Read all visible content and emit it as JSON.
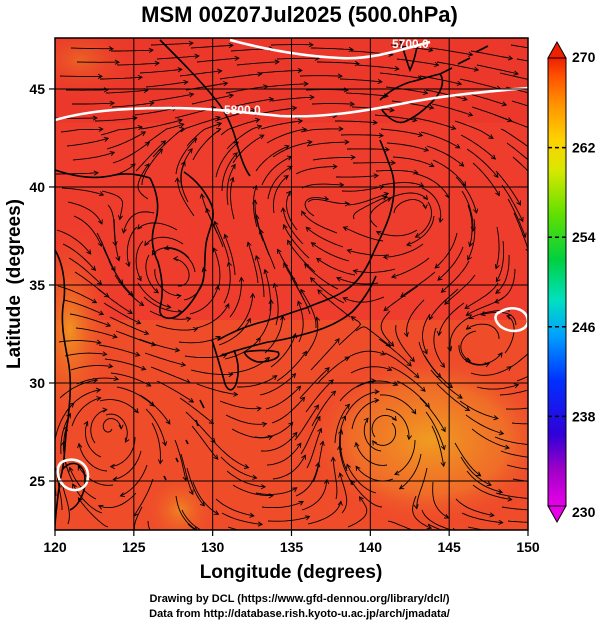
{
  "title": "MSM 00Z07Jul2025 (500.0hPa)",
  "chart_data": {
    "type": "map",
    "map_type": "temperature shading with wind streamlines and geopotential height contours",
    "xlabel": "Longitude (degrees)",
    "ylabel": "Latitude  (degrees)",
    "xlim": [
      120,
      150
    ],
    "ylim": [
      22.5,
      47.6
    ],
    "xticks": [
      120,
      125,
      130,
      135,
      140,
      145,
      150
    ],
    "yticks": [
      25,
      30,
      35,
      40,
      45
    ],
    "grid": true,
    "colorbar": {
      "min": 230,
      "max": 270,
      "ticks": [
        230,
        238,
        246,
        254,
        262,
        270
      ],
      "colors": [
        "#e800e8",
        "#a000c8",
        "#3000d8",
        "#0030ff",
        "#00a0ff",
        "#00e0c0",
        "#00d040",
        "#60e000",
        "#d8e800",
        "#ffd000",
        "#ff9000",
        "#ff5000",
        "#ee2000"
      ]
    },
    "contours": [
      {
        "label": "5700.0",
        "value": 5700
      },
      {
        "label": "5800.0",
        "value": 5800
      },
      {
        "label": "5800.0",
        "value": 5800
      }
    ]
  },
  "credits": {
    "line1": "Drawing by DCL (https://www.gfd-dennou.org/library/dcl/)",
    "line2": "Data from http://database.rish.kyoto-u.ac.jp/arch/jmadata/"
  },
  "colors": {
    "field_base": "#ee3a2a",
    "field_warm": "#f07030",
    "field_hot": "#f0a020",
    "contour": "#ffffff",
    "coast": "#000000"
  }
}
